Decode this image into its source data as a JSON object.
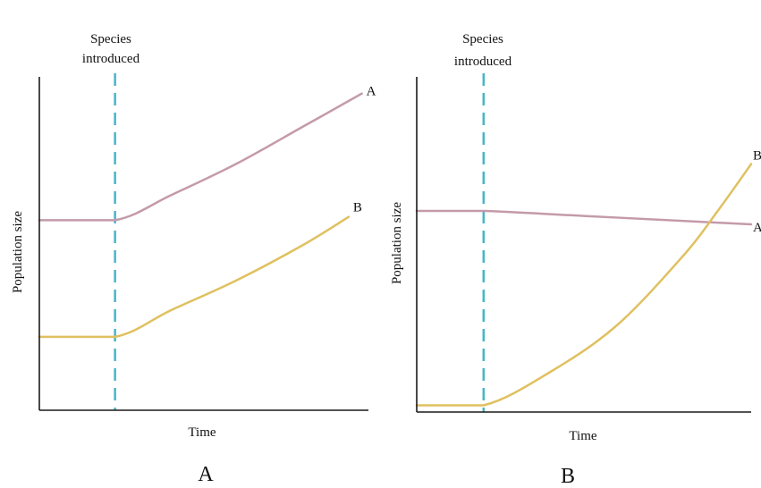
{
  "colors": {
    "axis": "#1a1a1a",
    "marker_line": "#45b6c8",
    "series_A": "#c49aaa",
    "series_B": "#e0c060"
  },
  "chart_data": [
    {
      "type": "line",
      "panel_label": "A",
      "xlabel": "Time",
      "ylabel": "Population size",
      "annotation": {
        "line1": "Species",
        "line2": "introduced"
      },
      "xlim": [
        0,
        10
      ],
      "ylim": [
        0,
        10
      ],
      "event_x": 2.3,
      "series": [
        {
          "name": "A",
          "x": [
            0,
            2.3,
            4,
            6,
            8,
            9.8
          ],
          "y": [
            5.7,
            5.7,
            6.45,
            7.4,
            8.5,
            9.5
          ]
        },
        {
          "name": "B",
          "x": [
            0,
            2.3,
            4,
            6,
            8,
            9.4
          ],
          "y": [
            2.2,
            2.2,
            3.0,
            3.9,
            4.95,
            5.8
          ]
        }
      ]
    },
    {
      "type": "line",
      "panel_label": "B",
      "xlabel": "Time",
      "ylabel": "Population size",
      "annotation": {
        "line1": "Species",
        "line2": "introduced"
      },
      "xlim": [
        0,
        10
      ],
      "ylim": [
        0,
        10
      ],
      "event_x": 2.0,
      "series": [
        {
          "name": "A",
          "x": [
            0,
            2.0,
            5,
            8,
            10
          ],
          "y": [
            6.0,
            6.0,
            5.85,
            5.7,
            5.6
          ]
        },
        {
          "name": "B",
          "x": [
            0,
            2.0,
            4,
            6,
            8,
            9,
            10
          ],
          "y": [
            0.2,
            0.2,
            1.2,
            2.6,
            4.7,
            6.0,
            7.4
          ]
        }
      ]
    }
  ]
}
